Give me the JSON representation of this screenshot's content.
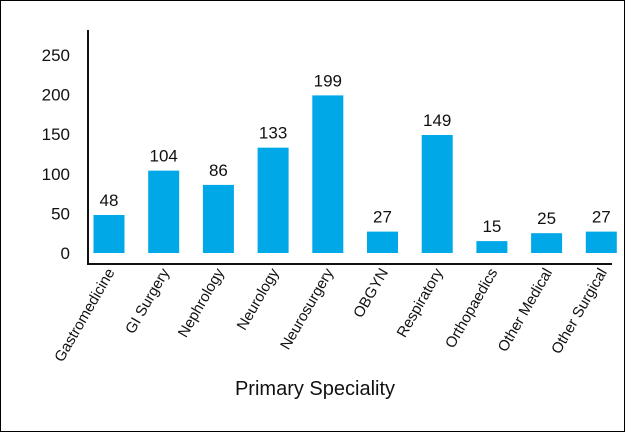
{
  "chart_data": {
    "type": "bar",
    "categories": [
      "Gastromedicine",
      "GI Surgery",
      "Nephrology",
      "Neurology",
      "Neurosurgery",
      "OBGYN",
      "Respiratory",
      "Orthopaedics",
      "Other Medical",
      "Other Surgical"
    ],
    "values": [
      48,
      104,
      86,
      133,
      199,
      27,
      149,
      15,
      25,
      27
    ],
    "xlabel": "Primary Speciality",
    "ylabel": "",
    "yticks": [
      0,
      50,
      100,
      150,
      200,
      250
    ],
    "ylim": [
      0,
      250
    ],
    "bar_color": "#00a8e8",
    "grid": false,
    "legend": "none"
  }
}
